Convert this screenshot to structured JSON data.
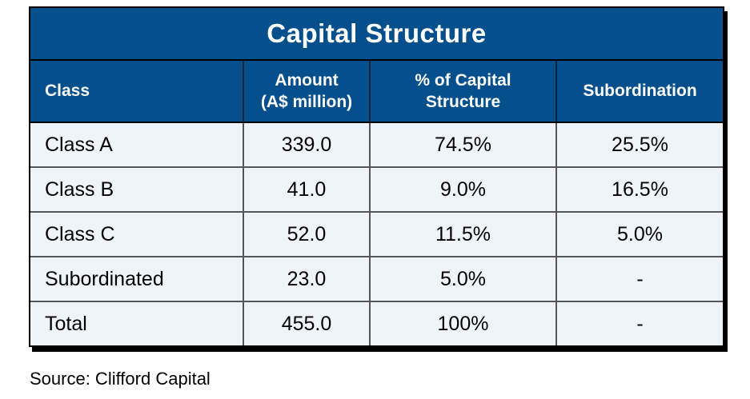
{
  "chart_data": {
    "type": "table",
    "title": "Capital Structure",
    "columns": [
      {
        "label": "Class",
        "lines": [
          "Class"
        ]
      },
      {
        "label": "Amount (A$ million)",
        "lines": [
          "Amount",
          "(A$ million)"
        ]
      },
      {
        "label": "% of Capital Structure",
        "lines": [
          "% of Capital",
          "Structure"
        ]
      },
      {
        "label": "Subordination",
        "lines": [
          "Subordination"
        ]
      }
    ],
    "rows": [
      {
        "cells": [
          "Class A",
          "339.0",
          "74.5%",
          "25.5%"
        ]
      },
      {
        "cells": [
          "Class B",
          "41.0",
          "9.0%",
          "16.5%"
        ]
      },
      {
        "cells": [
          "Class C",
          "52.0",
          "11.5%",
          "5.0%"
        ]
      },
      {
        "cells": [
          "Subordinated",
          "23.0",
          "5.0%",
          "-"
        ]
      },
      {
        "cells": [
          "Total",
          "455.0",
          "100%",
          "-"
        ]
      }
    ],
    "source": "Source: Clifford Capital"
  },
  "colors": {
    "header_blue": "#054F8C",
    "row_background": "#EFF4F8",
    "grid_line": "#54565B",
    "outer_border": "#000000",
    "header_text": "#FFFFFF",
    "body_text": "#000000"
  }
}
